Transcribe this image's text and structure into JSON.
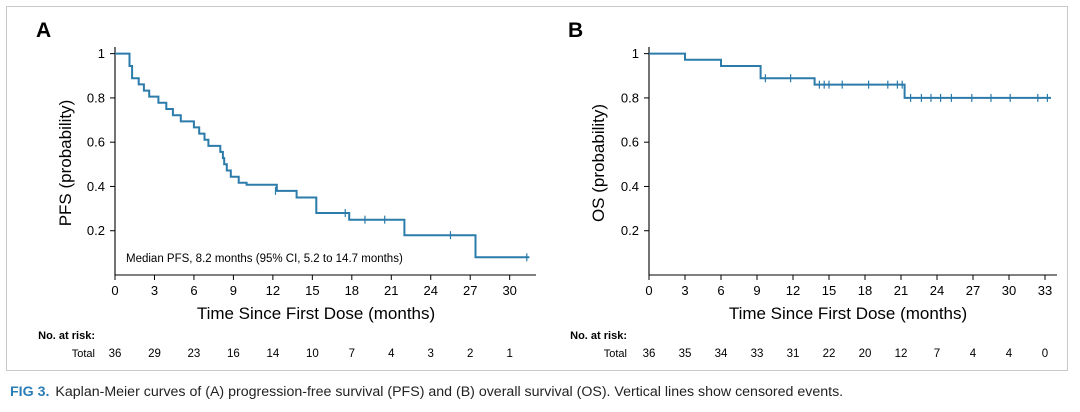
{
  "chart_data": [
    {
      "type": "line",
      "subtype": "kaplan-meier",
      "panel": "A",
      "xlabel": "Time Since First Dose (months)",
      "ylabel": "PFS (probability)",
      "xlim": [
        0,
        32
      ],
      "ylim": [
        0,
        1.03
      ],
      "xticks": [
        0,
        3,
        6,
        9,
        12,
        15,
        18,
        21,
        24,
        27,
        30
      ],
      "yticks": [
        0.2,
        0.4,
        0.6,
        0.8,
        1
      ],
      "ytick_labels": [
        "0.2",
        "0.4",
        "0.6",
        "0.8",
        "1"
      ],
      "grid": false,
      "line_color": "#2b7bab",
      "annotation": "Median PFS, 8.2 months (95% CI, 5.2 to 14.7 months)",
      "series": [
        {
          "name": "PFS",
          "steps": [
            [
              0,
              1.0
            ],
            [
              1.1,
              0.944
            ],
            [
              1.3,
              0.889
            ],
            [
              1.8,
              0.861
            ],
            [
              2.2,
              0.833
            ],
            [
              2.6,
              0.806
            ],
            [
              3.3,
              0.778
            ],
            [
              3.9,
              0.75
            ],
            [
              4.4,
              0.722
            ],
            [
              5.0,
              0.694
            ],
            [
              6.0,
              0.667
            ],
            [
              6.4,
              0.639
            ],
            [
              6.8,
              0.611
            ],
            [
              7.1,
              0.583
            ],
            [
              8.0,
              0.556
            ],
            [
              8.2,
              0.528
            ],
            [
              8.3,
              0.5
            ],
            [
              8.5,
              0.472
            ],
            [
              8.8,
              0.444
            ],
            [
              9.4,
              0.417
            ],
            [
              10.0,
              0.408
            ],
            [
              12.3,
              0.38
            ],
            [
              13.8,
              0.35
            ],
            [
              15.3,
              0.28
            ],
            [
              17.8,
              0.25
            ],
            [
              22.0,
              0.18
            ],
            [
              27.4,
              0.08
            ],
            [
              31.5,
              0.08
            ]
          ],
          "censored": [
            [
              12.2,
              0.38
            ],
            [
              17.5,
              0.28
            ],
            [
              19.0,
              0.25
            ],
            [
              20.5,
              0.25
            ],
            [
              25.5,
              0.18
            ],
            [
              31.3,
              0.08
            ]
          ]
        }
      ],
      "risk_table": {
        "label": "No. at risk:",
        "row_label": "Total",
        "times": [
          0,
          3,
          6,
          9,
          12,
          15,
          18,
          21,
          24,
          27,
          30
        ],
        "values": [
          "36",
          "29",
          "23",
          "16",
          "14",
          "10",
          "7",
          "4",
          "3",
          "2",
          "1"
        ]
      }
    },
    {
      "type": "line",
      "subtype": "kaplan-meier",
      "panel": "B",
      "xlabel": "Time Since First Dose (months)",
      "ylabel": "OS (probability)",
      "xlim": [
        0,
        34
      ],
      "ylim": [
        0,
        1.03
      ],
      "xticks": [
        0,
        3,
        6,
        9,
        12,
        15,
        18,
        21,
        24,
        27,
        30,
        33
      ],
      "yticks": [
        0.2,
        0.4,
        0.6,
        0.8,
        1
      ],
      "ytick_labels": [
        "0.2",
        "0.4",
        "0.6",
        "0.8",
        "1"
      ],
      "grid": false,
      "line_color": "#2b7bab",
      "series": [
        {
          "name": "OS",
          "steps": [
            [
              0,
              1.0
            ],
            [
              3.0,
              0.972
            ],
            [
              6.0,
              0.944
            ],
            [
              9.3,
              0.889
            ],
            [
              13.8,
              0.86
            ],
            [
              21.3,
              0.8
            ],
            [
              33.5,
              0.8
            ]
          ],
          "censored": [
            [
              9.7,
              0.889
            ],
            [
              11.8,
              0.889
            ],
            [
              14.2,
              0.86
            ],
            [
              14.6,
              0.86
            ],
            [
              15.0,
              0.86
            ],
            [
              16.1,
              0.86
            ],
            [
              18.3,
              0.86
            ],
            [
              19.9,
              0.86
            ],
            [
              20.7,
              0.86
            ],
            [
              21.1,
              0.86
            ],
            [
              21.8,
              0.8
            ],
            [
              22.7,
              0.8
            ],
            [
              23.5,
              0.8
            ],
            [
              24.3,
              0.8
            ],
            [
              25.2,
              0.8
            ],
            [
              26.9,
              0.8
            ],
            [
              28.5,
              0.8
            ],
            [
              30.1,
              0.8
            ],
            [
              32.4,
              0.8
            ],
            [
              33.2,
              0.8
            ]
          ]
        }
      ],
      "risk_table": {
        "label": "No. at risk:",
        "row_label": "Total",
        "times": [
          0,
          3,
          6,
          9,
          12,
          15,
          18,
          21,
          24,
          27,
          30,
          33
        ],
        "values": [
          "36",
          "35",
          "34",
          "33",
          "31",
          "22",
          "20",
          "12",
          "7",
          "4",
          "4",
          "0"
        ]
      }
    }
  ],
  "caption": {
    "label": "FIG 3.",
    "text": "Kaplan-Meier curves of (A) progression-free survival (PFS) and (B) overall survival (OS). Vertical lines show censored events."
  }
}
